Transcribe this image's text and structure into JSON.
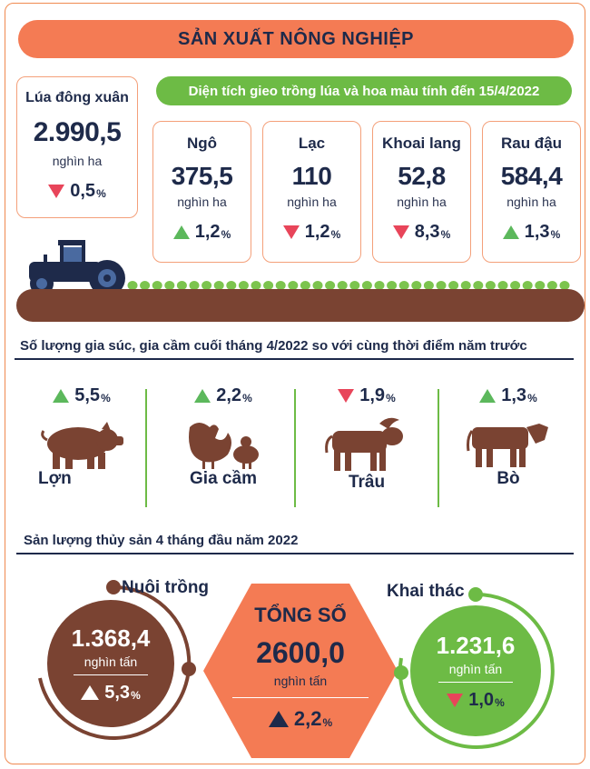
{
  "header": {
    "title": "SẢN XUẤT NÔNG NGHIỆP"
  },
  "colors": {
    "accent_orange": "#f47b54",
    "green": "#6dbb45",
    "brown": "#7a4332",
    "navy": "#1e2a4a",
    "up": "#5cb85c",
    "down": "#e8455a"
  },
  "rice": {
    "name": "Lúa đông xuân",
    "value": "2.990,5",
    "unit": "nghìn ha",
    "change": "0,5",
    "pct": "%",
    "direction": "down"
  },
  "crops_banner": "Diện tích gieo trồng lúa và hoa màu tính đến 15/4/2022",
  "crops": [
    {
      "name": "Ngô",
      "value": "375,5",
      "unit": "nghìn ha",
      "change": "1,2",
      "pct": "%",
      "direction": "up"
    },
    {
      "name": "Lạc",
      "value": "110",
      "unit": "nghìn ha",
      "change": "1,2",
      "pct": "%",
      "direction": "down"
    },
    {
      "name": "Khoai lang",
      "value": "52,8",
      "unit": "nghìn ha",
      "change": "8,3",
      "pct": "%",
      "direction": "down"
    },
    {
      "name": "Rau đậu",
      "value": "584,4",
      "unit": "nghìn ha",
      "change": "1,3",
      "pct": "%",
      "direction": "up"
    }
  ],
  "livestock": {
    "title": "Số lượng gia súc, gia cầm cuối tháng 4/2022 so với cùng thời điểm năm trước",
    "items": [
      {
        "name": "Lợn",
        "icon": "pig-icon",
        "change": "5,5",
        "pct": "%",
        "direction": "up"
      },
      {
        "name": "Gia cầm",
        "icon": "poultry-icon",
        "change": "2,2",
        "pct": "%",
        "direction": "up"
      },
      {
        "name": "Trâu",
        "icon": "buffalo-icon",
        "change": "1,9",
        "pct": "%",
        "direction": "down"
      },
      {
        "name": "Bò",
        "icon": "cow-icon",
        "change": "1,3",
        "pct": "%",
        "direction": "up"
      }
    ]
  },
  "fishery": {
    "title": "Sản lượng thủy sản 4 tháng đầu năm 2022",
    "aquaculture": {
      "name": "Nuôi trồng",
      "value": "1.368,4",
      "unit": "nghìn tấn",
      "change": "5,3",
      "pct": "%",
      "direction": "up"
    },
    "total": {
      "name": "TỔNG SỐ",
      "value": "2600,0",
      "unit": "nghìn tấn",
      "change": "2,2",
      "pct": "%",
      "direction": "up"
    },
    "capture": {
      "name": "Khai thác",
      "value": "1.231,6",
      "unit": "nghìn tấn",
      "change": "1,0",
      "pct": "%",
      "direction": "down"
    }
  }
}
